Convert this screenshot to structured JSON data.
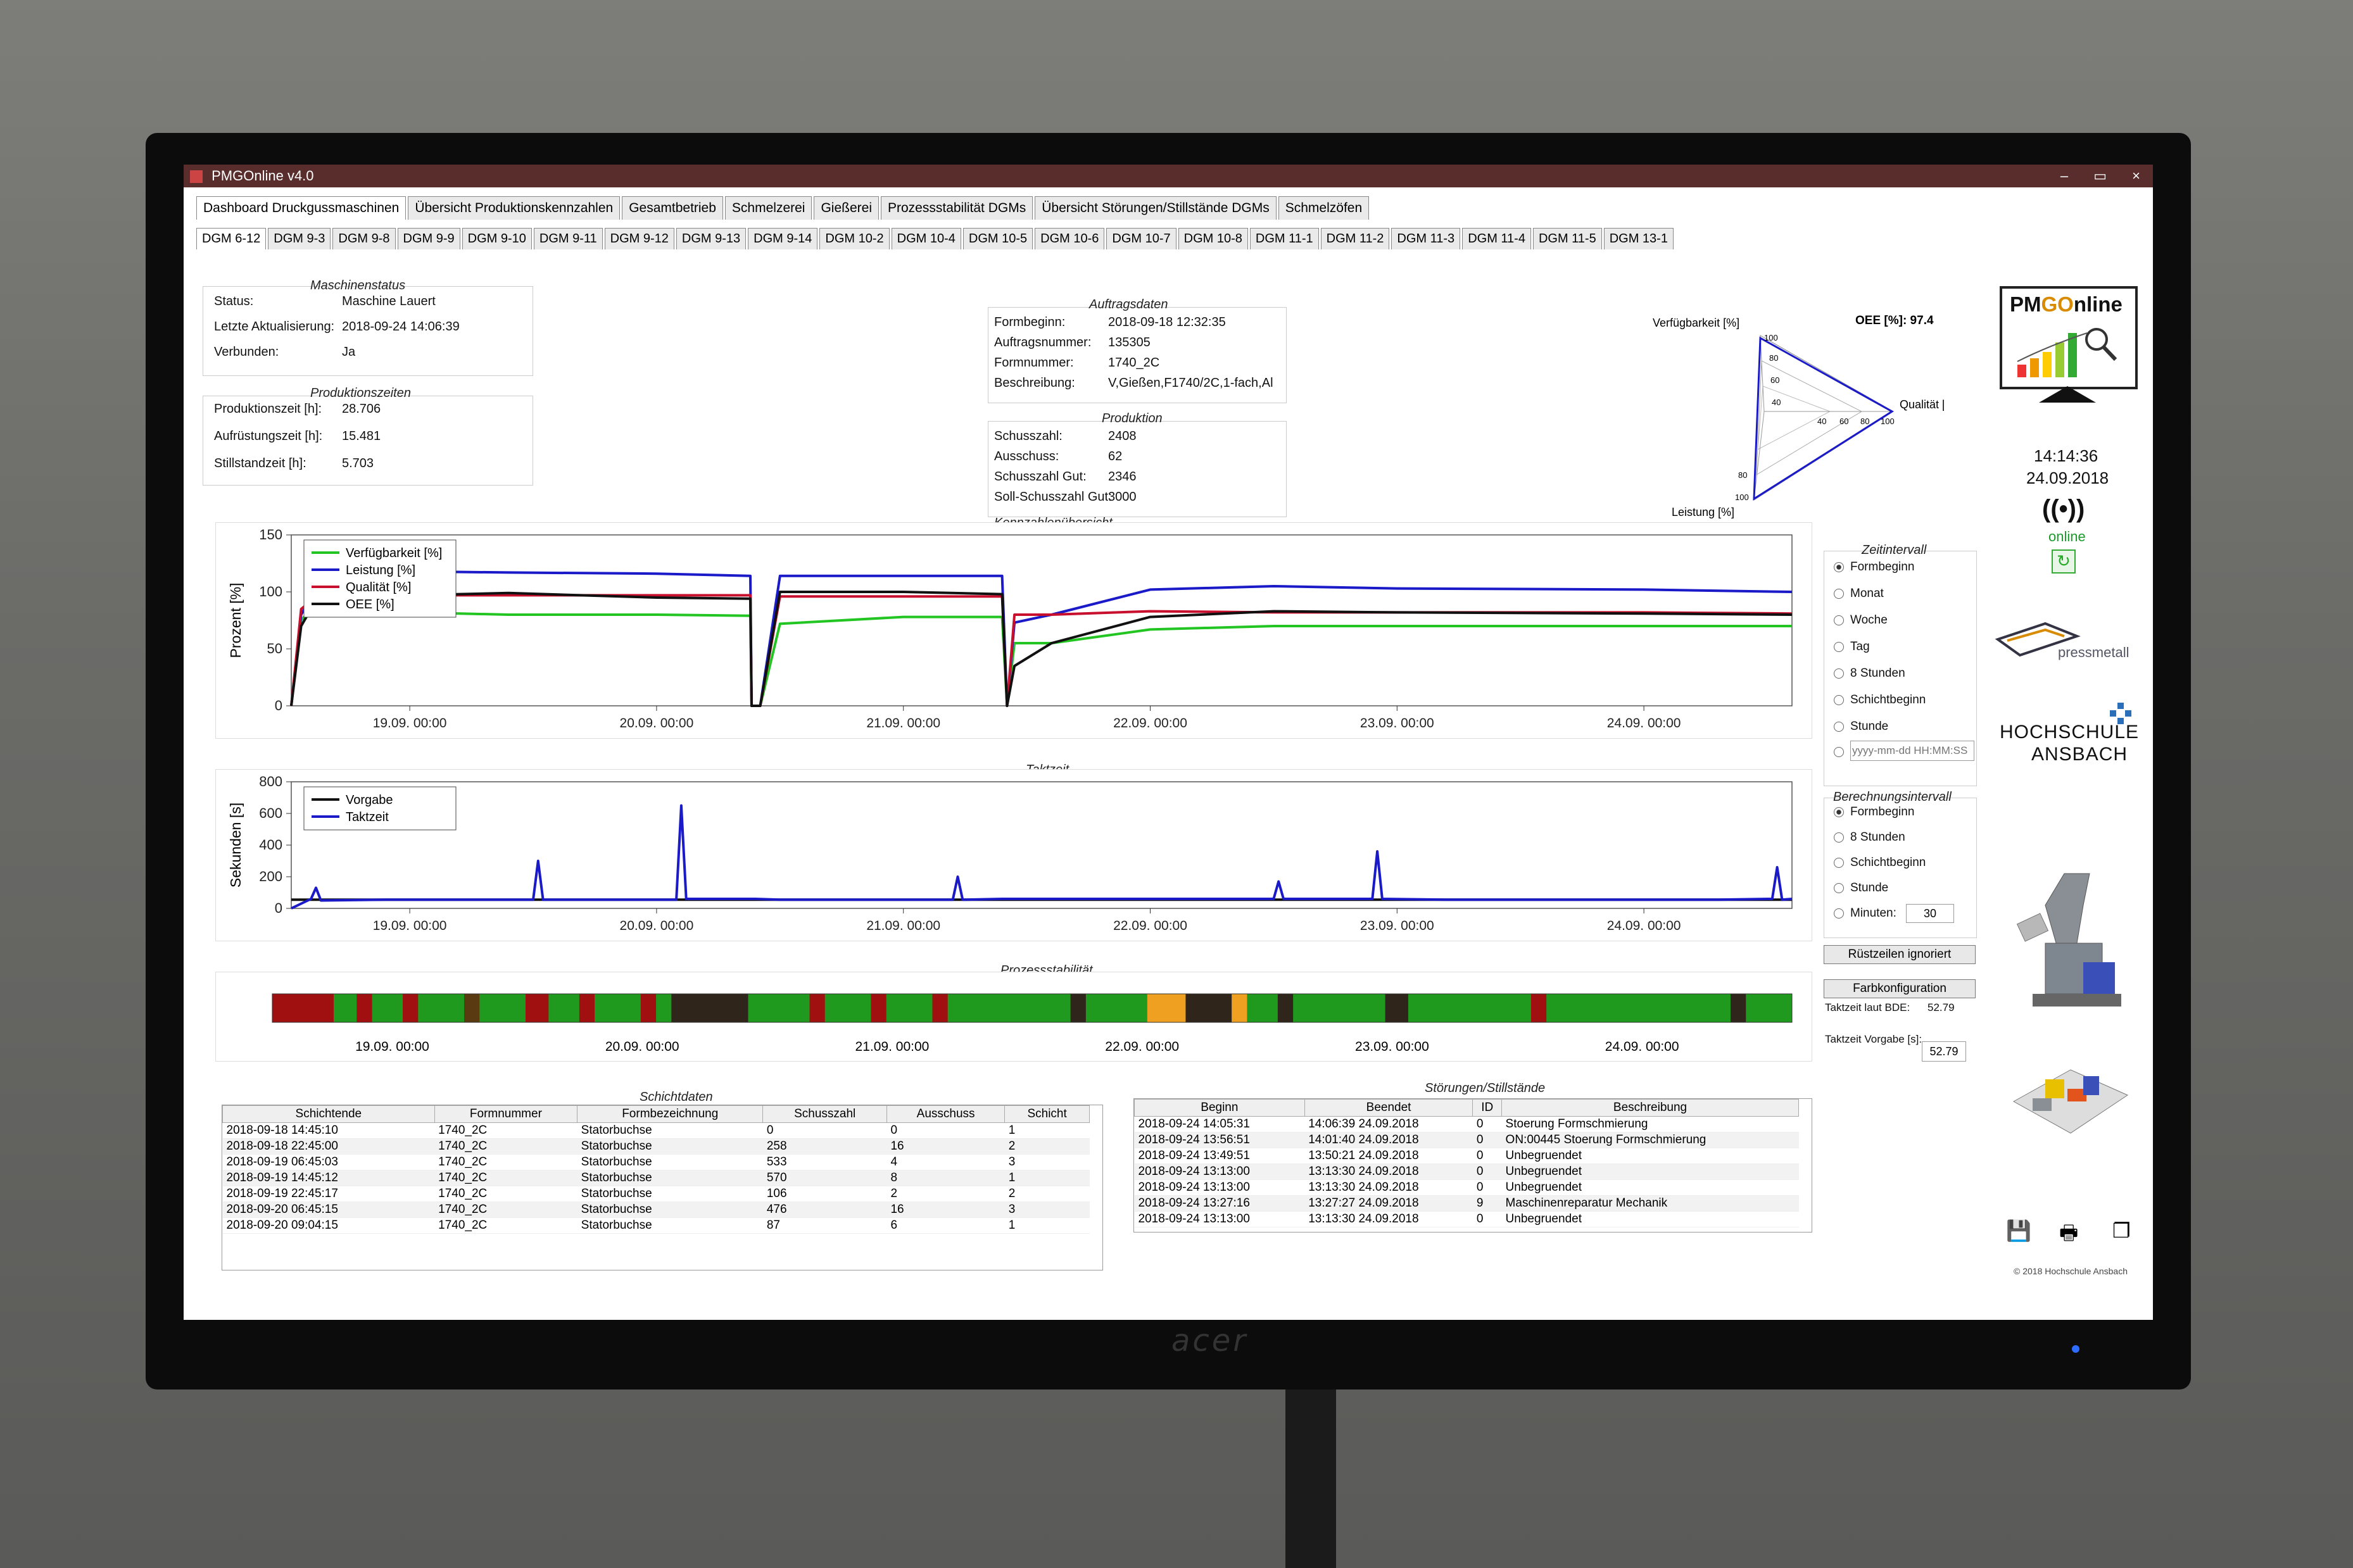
{
  "window": {
    "title": "PMGOnline v4.0",
    "controls": [
      "–",
      "▭",
      "×"
    ]
  },
  "tabs_top": [
    "Dashboard Druckgussmaschinen",
    "Übersicht Produktionskennzahlen",
    "Gesamtbetrieb",
    "Schmelzerei",
    "Gießerei",
    "Prozessstabilität DGMs",
    "Übersicht Störungen/Stillstände DGMs",
    "Schmelzöfen"
  ],
  "tabs_machines": [
    "DGM 6-12",
    "DGM 9-3",
    "DGM 9-8",
    "DGM 9-9",
    "DGM 9-10",
    "DGM 9-11",
    "DGM 9-12",
    "DGM 9-13",
    "DGM 9-14",
    "DGM 10-2",
    "DGM 10-4",
    "DGM 10-5",
    "DGM 10-6",
    "DGM 10-7",
    "DGM 10-8",
    "DGM 11-1",
    "DGM 11-2",
    "DGM 11-3",
    "DGM 11-4",
    "DGM 11-5",
    "DGM 13-1"
  ],
  "maschinenstatus": {
    "title": "Maschinenstatus",
    "rows": [
      [
        "Status:",
        "Maschine Lauert"
      ],
      [
        "Letzte Aktualisierung:",
        "2018-09-24 14:06:39"
      ],
      [
        "Verbunden:",
        "Ja"
      ]
    ]
  },
  "produktionszeiten": {
    "title": "Produktionszeiten",
    "rows": [
      [
        "Produktionszeit [h]:",
        "28.706"
      ],
      [
        "Aufrüstungszeit [h]:",
        "15.481"
      ],
      [
        "Stillstandzeit [h]:",
        "5.703"
      ]
    ]
  },
  "auftragsdaten": {
    "title": "Auftragsdaten",
    "rows": [
      [
        "Formbeginn:",
        "2018-09-18 12:32:35"
      ],
      [
        "Auftragsnummer:",
        "135305"
      ],
      [
        "Formnummer:",
        "1740_2C"
      ],
      [
        "Beschreibung:",
        "V,Gießen,F1740/2C,1-fach,Al"
      ]
    ]
  },
  "produktion": {
    "title": "Produktion",
    "rows": [
      [
        "Schusszahl:",
        "2408"
      ],
      [
        "Ausschuss:",
        "62"
      ],
      [
        "Schusszahl Gut:",
        "2346"
      ],
      [
        "Soll-Schusszahl Gut:",
        "3000"
      ]
    ]
  },
  "radar": {
    "oee_label": "OEE [%]: 97.4",
    "axis_labels": [
      "Verfügbarkeit [%]",
      "Qualität [%]",
      "Leistung [%]"
    ],
    "ticks": [
      "100",
      "80",
      "60",
      "40",
      "40",
      "60",
      "80",
      "100",
      "80",
      "100"
    ]
  },
  "clock": {
    "time": "14:14:36",
    "date": "24.09.2018",
    "status": "online"
  },
  "branding": {
    "logo_main": "PMGOnline",
    "logo_pm": "PM",
    "logo_go": "GO",
    "logo_nline": "nline",
    "pressmetall": "pressmetall",
    "hochschule_line1": "HOCHSCHULE",
    "hochschule_line2": "ANSBACH",
    "copyright": "© 2018 Hochschule Ansbach"
  },
  "kennzahlen_chart_title": "Kennzahlenübersicht",
  "taktzeit_chart_title": "Taktzeit",
  "prozess_title": "Prozessstabilität",
  "chart_data": [
    {
      "type": "line",
      "title": "Kennzahlenübersicht",
      "ylabel": "Prozent [%]",
      "ylim": [
        0,
        150
      ],
      "yticks": [
        "0",
        "50",
        "100",
        "150"
      ],
      "xticks": [
        "19.09. 00:00",
        "20.09. 00:00",
        "21.09. 00:00",
        "22.09. 00:00",
        "23.09. 00:00",
        "24.09. 00:00"
      ],
      "xlim_days": [
        18.52,
        24.6
      ],
      "legend": "top-left",
      "series": [
        {
          "name": "Verfügbarkeit [%]",
          "color": "#22c522",
          "x": [
            18.52,
            18.56,
            18.6,
            18.7,
            18.8,
            19.0,
            19.4,
            20.0,
            20.38,
            20.385,
            20.42,
            20.5,
            21.0,
            21.4,
            21.42,
            21.45,
            21.6,
            22.0,
            22.5,
            23.0,
            24.0,
            24.6
          ],
          "y": [
            0,
            75,
            85,
            82,
            80,
            82,
            80,
            80,
            79,
            0,
            0,
            72,
            78,
            78,
            0,
            55,
            55,
            67,
            70,
            70,
            70,
            70
          ]
        },
        {
          "name": "Leistung [%]",
          "color": "#1a1ac8",
          "x": [
            18.52,
            18.56,
            18.6,
            18.7,
            19.0,
            19.4,
            20.0,
            20.38,
            20.385,
            20.42,
            20.5,
            21.0,
            21.4,
            21.42,
            21.45,
            21.6,
            22.0,
            22.5,
            23.0,
            24.0,
            24.6
          ],
          "y": [
            0,
            80,
            95,
            118,
            118,
            117,
            116,
            114,
            0,
            0,
            114,
            114,
            114,
            0,
            73,
            80,
            102,
            105,
            103,
            102,
            100
          ]
        },
        {
          "name": "Qualität [%]",
          "color": "#c8102e",
          "x": [
            18.52,
            18.56,
            18.6,
            18.7,
            19.0,
            19.4,
            20.0,
            20.38,
            20.385,
            20.42,
            20.5,
            21.0,
            21.4,
            21.42,
            21.45,
            21.6,
            22.0,
            22.5,
            23.0,
            24.0,
            24.6
          ],
          "y": [
            0,
            85,
            92,
            96,
            97,
            97,
            97,
            97,
            0,
            0,
            96,
            96,
            96,
            0,
            80,
            80,
            83,
            82,
            82,
            82,
            81
          ]
        },
        {
          "name": "OEE [%]",
          "color": "#111111",
          "x": [
            18.52,
            18.56,
            18.6,
            18.7,
            19.0,
            19.4,
            20.0,
            20.38,
            20.385,
            20.42,
            20.5,
            21.0,
            21.4,
            21.42,
            21.45,
            21.6,
            22.0,
            22.5,
            23.0,
            24.0,
            24.6
          ],
          "y": [
            0,
            70,
            85,
            93,
            97,
            99,
            95,
            94,
            0,
            0,
            100,
            100,
            98,
            0,
            35,
            55,
            78,
            83,
            82,
            81,
            80
          ]
        }
      ]
    },
    {
      "type": "line",
      "title": "Taktzeit",
      "ylabel": "Sekunden [s]",
      "ylim": [
        0,
        800
      ],
      "yticks": [
        "0",
        "200",
        "400",
        "600",
        "800"
      ],
      "xticks": [
        "19.09. 00:00",
        "20.09. 00:00",
        "21.09. 00:00",
        "22.09. 00:00",
        "23.09. 00:00",
        "24.09. 00:00"
      ],
      "xlim_days": [
        18.52,
        24.6
      ],
      "legend": "top-left",
      "series": [
        {
          "name": "Vorgabe",
          "color": "#111111",
          "x": [
            18.52,
            24.6
          ],
          "y": [
            55,
            55
          ]
        },
        {
          "name": "Taktzeit",
          "color": "#1a1ac8",
          "x": [
            18.52,
            18.6,
            18.62,
            18.64,
            18.9,
            19.5,
            19.52,
            19.54,
            20.0,
            20.08,
            20.1,
            20.12,
            20.4,
            20.5,
            21.0,
            21.2,
            21.22,
            21.24,
            21.4,
            21.8,
            22.5,
            22.52,
            22.54,
            22.8,
            22.9,
            22.92,
            22.94,
            23.2,
            24.0,
            24.3,
            24.52,
            24.54,
            24.56,
            24.6
          ],
          "y": [
            0,
            60,
            130,
            50,
            55,
            55,
            300,
            55,
            55,
            55,
            650,
            60,
            60,
            55,
            55,
            55,
            200,
            55,
            60,
            60,
            60,
            170,
            60,
            60,
            60,
            360,
            60,
            55,
            55,
            55,
            60,
            260,
            55,
            60
          ]
        }
      ]
    }
  ],
  "prozessstabilitaet": {
    "xticks": [
      "19.09. 00:00",
      "20.09. 00:00",
      "21.09. 00:00",
      "22.09. 00:00",
      "23.09. 00:00",
      "24.09. 00:00"
    ],
    "segments": [
      {
        "w": 4,
        "c": "#a01010"
      },
      {
        "w": 1.5,
        "c": "#1f9a1f"
      },
      {
        "w": 1,
        "c": "#a01010"
      },
      {
        "w": 2,
        "c": "#1f9a1f"
      },
      {
        "w": 1,
        "c": "#a01010"
      },
      {
        "w": 3,
        "c": "#1f9a1f"
      },
      {
        "w": 1,
        "c": "#5a3a10"
      },
      {
        "w": 3,
        "c": "#1f9a1f"
      },
      {
        "w": 1.5,
        "c": "#a01010"
      },
      {
        "w": 2,
        "c": "#1f9a1f"
      },
      {
        "w": 1,
        "c": "#a01010"
      },
      {
        "w": 3,
        "c": "#1f9a1f"
      },
      {
        "w": 1,
        "c": "#a01010"
      },
      {
        "w": 1,
        "c": "#1f9a1f"
      },
      {
        "w": 5,
        "c": "#30251a"
      },
      {
        "w": 4,
        "c": "#1f9a1f"
      },
      {
        "w": 1,
        "c": "#a01010"
      },
      {
        "w": 3,
        "c": "#1f9a1f"
      },
      {
        "w": 1,
        "c": "#a01010"
      },
      {
        "w": 3,
        "c": "#1f9a1f"
      },
      {
        "w": 1,
        "c": "#a01010"
      },
      {
        "w": 8,
        "c": "#1f9a1f"
      },
      {
        "w": 1,
        "c": "#30251a"
      },
      {
        "w": 4,
        "c": "#1f9a1f"
      },
      {
        "w": 2.5,
        "c": "#f0a020"
      },
      {
        "w": 3,
        "c": "#30251a"
      },
      {
        "w": 1,
        "c": "#f0a020"
      },
      {
        "w": 2,
        "c": "#1f9a1f"
      },
      {
        "w": 1,
        "c": "#30251a"
      },
      {
        "w": 6,
        "c": "#1f9a1f"
      },
      {
        "w": 1.5,
        "c": "#30251a"
      },
      {
        "w": 8,
        "c": "#1f9a1f"
      },
      {
        "w": 1,
        "c": "#a01010"
      },
      {
        "w": 12,
        "c": "#1f9a1f"
      },
      {
        "w": 1,
        "c": "#30251a"
      },
      {
        "w": 3,
        "c": "#1f9a1f"
      }
    ]
  },
  "zeitintervall": {
    "title": "Zeitintervall",
    "options": [
      "Formbeginn",
      "Monat",
      "Woche",
      "Tag",
      "8 Stunden",
      "Schichtbeginn",
      "Stunde"
    ],
    "custom_placeholder": "yyyy-mm-dd HH:MM:SS"
  },
  "berechnungsintervall": {
    "title": "Berechnungsintervall",
    "options": [
      "Formbeginn",
      "8 Stunden",
      "Schichtbeginn",
      "Stunde"
    ],
    "minuten_label": "Minuten:",
    "minuten_value": "30"
  },
  "buttons": {
    "ruestzeilen": "Rüstzeilen ignoriert",
    "farbkonfiguration": "Farbkonfiguration"
  },
  "taktzeit_info": {
    "bde_label": "Taktzeit laut BDE:",
    "bde_value": "52.79",
    "vorgabe_label": "Taktzeit Vorgabe [s]:",
    "vorgabe_value": "52.79"
  },
  "schichtdaten": {
    "title": "Schichtdaten",
    "columns": [
      "Schichtende",
      "Formnummer",
      "Formbezeichnung",
      "Schusszahl",
      "Ausschuss",
      "Schicht"
    ],
    "rows": [
      [
        "2018-09-18 14:45:10",
        "1740_2C",
        "Statorbuchse",
        "0",
        "0",
        "1"
      ],
      [
        "2018-09-18 22:45:00",
        "1740_2C",
        "Statorbuchse",
        "258",
        "16",
        "2"
      ],
      [
        "2018-09-19 06:45:03",
        "1740_2C",
        "Statorbuchse",
        "533",
        "4",
        "3"
      ],
      [
        "2018-09-19 14:45:12",
        "1740_2C",
        "Statorbuchse",
        "570",
        "8",
        "1"
      ],
      [
        "2018-09-19 22:45:17",
        "1740_2C",
        "Statorbuchse",
        "106",
        "2",
        "2"
      ],
      [
        "2018-09-20 06:45:15",
        "1740_2C",
        "Statorbuchse",
        "476",
        "16",
        "3"
      ],
      [
        "2018-09-20 09:04:15",
        "1740_2C",
        "Statorbuchse",
        "87",
        "6",
        "1"
      ]
    ]
  },
  "stoerungen": {
    "title": "Störungen/Stillstände",
    "columns": [
      "Beginn",
      "Beendet",
      "ID",
      "Beschreibung"
    ],
    "rows": [
      [
        "2018-09-24 14:05:31",
        "14:06:39 24.09.2018",
        "0",
        "Stoerung Formschmierung"
      ],
      [
        "2018-09-24 13:56:51",
        "14:01:40 24.09.2018",
        "0",
        "ON:00445 Stoerung Formschmierung"
      ],
      [
        "2018-09-24 13:49:51",
        "13:50:21 24.09.2018",
        "0",
        "Unbegruendet"
      ],
      [
        "2018-09-24 13:13:00",
        "13:13:30 24.09.2018",
        "0",
        "Unbegruendet"
      ],
      [
        "2018-09-24 13:13:00",
        "13:13:30 24.09.2018",
        "0",
        "Unbegruendet"
      ],
      [
        "2018-09-24 13:27:16",
        "13:27:27 24.09.2018",
        "9",
        "Maschinenreparatur Mechanik"
      ],
      [
        "2018-09-24 13:13:00",
        "13:13:30 24.09.2018",
        "0",
        "Unbegruendet"
      ]
    ]
  },
  "monitor_brand": "acer"
}
